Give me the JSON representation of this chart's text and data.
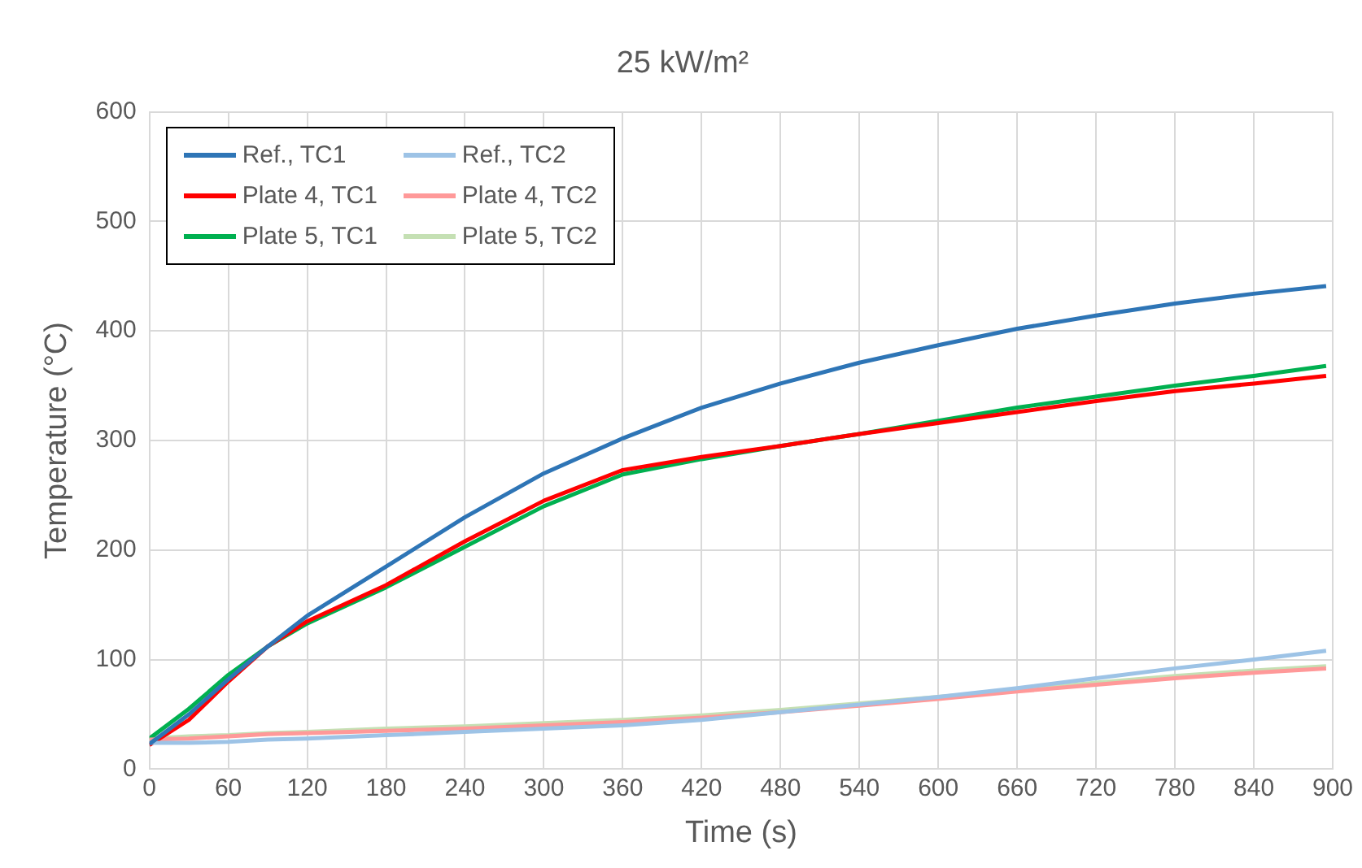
{
  "chart_data": {
    "type": "line",
    "title": "25 kW/m²",
    "xlabel": "Time (s)",
    "ylabel": "Temperature (°C)",
    "x": [
      0,
      30,
      60,
      90,
      120,
      180,
      240,
      300,
      360,
      420,
      480,
      540,
      600,
      660,
      720,
      780,
      840,
      895
    ],
    "series": [
      {
        "name": "Ref., TC1",
        "color": "#2e75b6",
        "values": [
          23,
          50,
          82,
          112,
          140,
          185,
          230,
          270,
          302,
          330,
          352,
          371,
          387,
          402,
          414,
          425,
          434,
          441
        ]
      },
      {
        "name": "Ref., TC2",
        "color": "#9dc3e6",
        "values": [
          24,
          24,
          25,
          27,
          28,
          31,
          34,
          37,
          40,
          45,
          52,
          59,
          66,
          74,
          83,
          92,
          100,
          108
        ]
      },
      {
        "name": "Plate 4, TC1",
        "color": "#ff0000",
        "values": [
          22,
          45,
          80,
          112,
          135,
          168,
          208,
          245,
          273,
          285,
          295,
          306,
          316,
          326,
          336,
          345,
          352,
          359
        ]
      },
      {
        "name": "Plate 4, TC2",
        "color": "#ff9999",
        "values": [
          27,
          28,
          30,
          32,
          33,
          35,
          37,
          40,
          43,
          47,
          52,
          58,
          64,
          71,
          77,
          83,
          88,
          92
        ]
      },
      {
        "name": "Plate 5, TC1",
        "color": "#00b050",
        "values": [
          28,
          55,
          86,
          112,
          133,
          166,
          203,
          240,
          269,
          283,
          295,
          306,
          318,
          330,
          340,
          350,
          359,
          368
        ]
      },
      {
        "name": "Plate 5, TC2",
        "color": "#c5e0b4",
        "values": [
          28,
          30,
          31,
          33,
          34,
          37,
          39,
          42,
          45,
          49,
          54,
          60,
          66,
          72,
          79,
          85,
          90,
          94
        ]
      }
    ],
    "xlim": [
      0,
      900
    ],
    "xticks": [
      0,
      60,
      120,
      180,
      240,
      300,
      360,
      420,
      480,
      540,
      600,
      660,
      720,
      780,
      840,
      900
    ],
    "ylim": [
      0,
      600
    ],
    "yticks": [
      0,
      100,
      200,
      300,
      400,
      500,
      600
    ],
    "grid": true,
    "legend": "top left",
    "marker": "none",
    "line_style": "solid"
  }
}
